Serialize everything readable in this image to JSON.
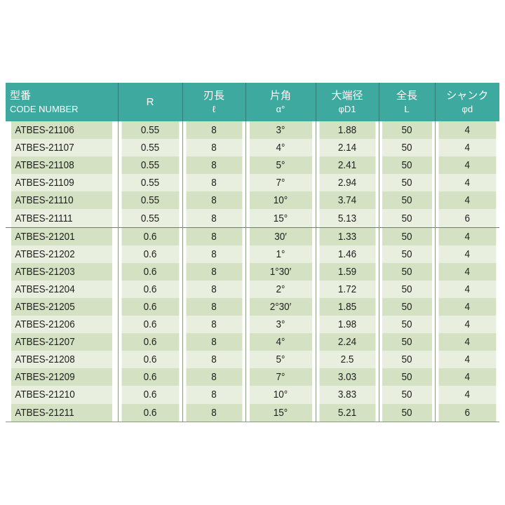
{
  "header": [
    {
      "jp": "型番",
      "sub": "CODE NUMBER"
    },
    {
      "jp": "R",
      "sub": ""
    },
    {
      "jp": "刃長",
      "sub": "ℓ"
    },
    {
      "jp": "片角",
      "sub": "α°"
    },
    {
      "jp": "大端径",
      "sub": "φD1"
    },
    {
      "jp": "全長",
      "sub": "L"
    },
    {
      "jp": "シャンク",
      "sub": "φd"
    }
  ],
  "colors": {
    "header": "#3ea99f",
    "row_dark": "#d4e1c2",
    "row_light": "#e8efdf"
  },
  "rows": [
    [
      "ATBES-21106",
      "0.55",
      "8",
      "3°",
      "1.88",
      "50",
      "4"
    ],
    [
      "ATBES-21107",
      "0.55",
      "8",
      "4°",
      "2.14",
      "50",
      "4"
    ],
    [
      "ATBES-21108",
      "0.55",
      "8",
      "5°",
      "2.41",
      "50",
      "4"
    ],
    [
      "ATBES-21109",
      "0.55",
      "8",
      "7°",
      "2.94",
      "50",
      "4"
    ],
    [
      "ATBES-21110",
      "0.55",
      "8",
      "10°",
      "3.74",
      "50",
      "4"
    ],
    [
      "ATBES-21111",
      "0.55",
      "8",
      "15°",
      "5.13",
      "50",
      "6"
    ],
    [
      "ATBES-21201",
      "0.6",
      "8",
      "30′",
      "1.33",
      "50",
      "4"
    ],
    [
      "ATBES-21202",
      "0.6",
      "8",
      "1°",
      "1.46",
      "50",
      "4"
    ],
    [
      "ATBES-21203",
      "0.6",
      "8",
      "1°30′",
      "1.59",
      "50",
      "4"
    ],
    [
      "ATBES-21204",
      "0.6",
      "8",
      "2°",
      "1.72",
      "50",
      "4"
    ],
    [
      "ATBES-21205",
      "0.6",
      "8",
      "2°30′",
      "1.85",
      "50",
      "4"
    ],
    [
      "ATBES-21206",
      "0.6",
      "8",
      "3°",
      "1.98",
      "50",
      "4"
    ],
    [
      "ATBES-21207",
      "0.6",
      "8",
      "4°",
      "2.24",
      "50",
      "4"
    ],
    [
      "ATBES-21208",
      "0.6",
      "8",
      "5°",
      "2.5",
      "50",
      "4"
    ],
    [
      "ATBES-21209",
      "0.6",
      "8",
      "7°",
      "3.03",
      "50",
      "4"
    ],
    [
      "ATBES-21210",
      "0.6",
      "8",
      "10°",
      "3.83",
      "50",
      "4"
    ],
    [
      "ATBES-21211",
      "0.6",
      "8",
      "15°",
      "5.21",
      "50",
      "6"
    ]
  ]
}
